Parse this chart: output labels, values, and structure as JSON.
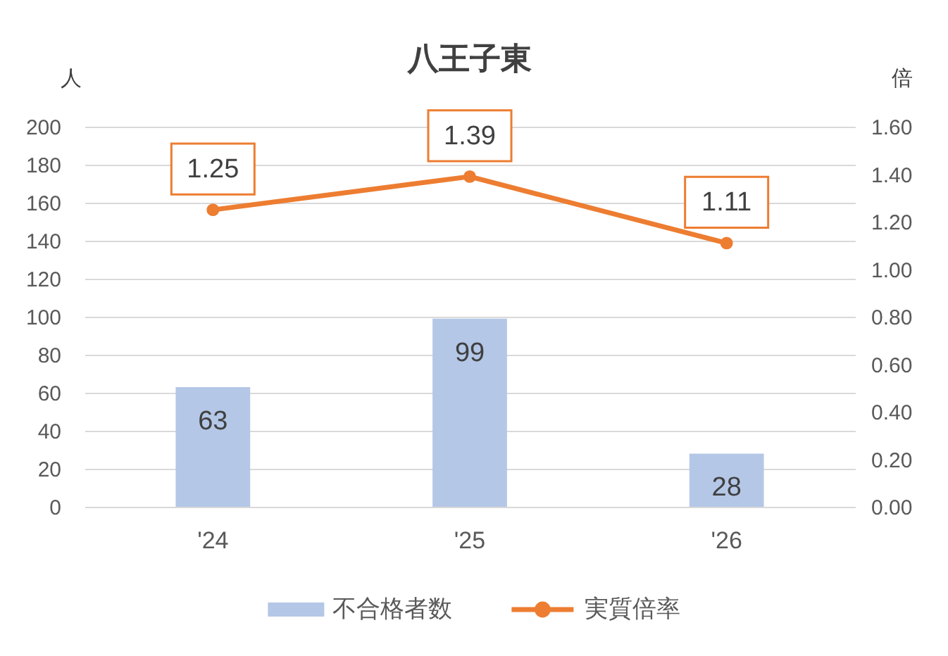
{
  "chart_data": {
    "type": "bar",
    "title": "八王子東",
    "ylabel": "人",
    "y2label": "倍",
    "categories": [
      "'24",
      "'25",
      "'26"
    ],
    "series": [
      {
        "name": "不合格者数",
        "color": "#b4c7e7",
        "values": [
          63,
          99,
          28
        ]
      },
      {
        "name": "実質倍率",
        "type": "line",
        "axis": "y2",
        "color": "#ed7d31",
        "values": [
          1.25,
          1.39,
          1.11
        ]
      }
    ],
    "ylim": [
      0,
      200
    ],
    "yticks": [
      0,
      20,
      40,
      60,
      80,
      100,
      120,
      140,
      160,
      180,
      200
    ],
    "y2lim": [
      0,
      1.6
    ],
    "y2ticks": [
      {
        "value": 0,
        "label": "0.00"
      },
      {
        "value": 0.2,
        "label": "0.20"
      },
      {
        "value": 0.4,
        "label": "0.40"
      },
      {
        "value": 0.6,
        "label": "0.60"
      },
      {
        "value": 0.8,
        "label": "0.80"
      },
      {
        "value": 1,
        "label": "1.00"
      },
      {
        "value": 1.2,
        "label": "1.20"
      },
      {
        "value": 1.4,
        "label": "1.40"
      },
      {
        "value": 1.6,
        "label": "1.60"
      }
    ],
    "data_labels": true,
    "grid": "y",
    "legend": "bottom",
    "marker": "circle"
  }
}
